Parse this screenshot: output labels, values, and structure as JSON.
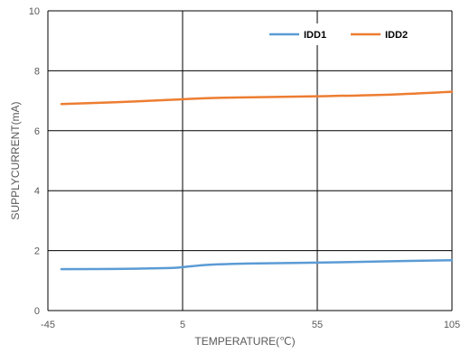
{
  "chart_data": {
    "type": "line",
    "xlabel": "TEMPERATURE(℃)",
    "ylabel": "SUPPLYCURRENT(mA)",
    "xlim": [
      -45,
      105
    ],
    "ylim": [
      0,
      10
    ],
    "x_ticks": [
      -45,
      5,
      55,
      105
    ],
    "y_ticks": [
      0,
      2,
      4,
      6,
      8,
      10
    ],
    "grid": true,
    "legend_position": "top-right",
    "series": [
      {
        "name": "IDD1",
        "color": "#5B9BD5",
        "x": [
          -40,
          -20,
          0,
          5,
          15,
          30,
          55,
          80,
          105
        ],
        "y": [
          1.38,
          1.39,
          1.42,
          1.45,
          1.53,
          1.57,
          1.6,
          1.64,
          1.68
        ]
      },
      {
        "name": "IDD2",
        "color": "#ED7D31",
        "x": [
          -40,
          -20,
          0,
          5,
          20,
          55,
          80,
          105
        ],
        "y": [
          6.89,
          6.95,
          7.03,
          7.05,
          7.1,
          7.15,
          7.2,
          7.3
        ]
      }
    ]
  }
}
